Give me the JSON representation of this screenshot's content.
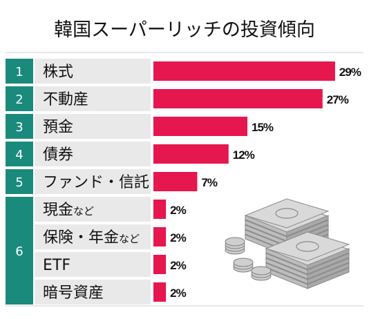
{
  "colors": {
    "rank_teal": "#1a8a7c",
    "label_bg": "#e9e9e9",
    "bar": "#e5174e",
    "text": "#111111",
    "rank_text": "#ffffff"
  },
  "icon": "money-stack-illustration",
  "chart_data": {
    "type": "bar",
    "orientation": "horizontal",
    "title": "韓国スーパーリッチの投資傾向",
    "grid": false,
    "legend": "none",
    "xlim": [
      0,
      30
    ],
    "groups": [
      {
        "rank": "1",
        "rows": [
          0
        ]
      },
      {
        "rank": "2",
        "rows": [
          1
        ]
      },
      {
        "rank": "3",
        "rows": [
          2
        ]
      },
      {
        "rank": "4",
        "rows": [
          3
        ]
      },
      {
        "rank": "5",
        "rows": [
          4
        ]
      },
      {
        "rank": "6",
        "rows": [
          5,
          6,
          7,
          8
        ]
      }
    ],
    "rows": [
      {
        "label": "株式",
        "suffix": "",
        "value": 29,
        "value_label": "29%"
      },
      {
        "label": "不動産",
        "suffix": "",
        "value": 27,
        "value_label": "27%"
      },
      {
        "label": "預金",
        "suffix": "",
        "value": 15,
        "value_label": "15%"
      },
      {
        "label": "債券",
        "suffix": "",
        "value": 12,
        "value_label": "12%"
      },
      {
        "label": "ファンド・信託",
        "suffix": "",
        "value": 7,
        "value_label": "7%"
      },
      {
        "label": "現金",
        "suffix": "など",
        "value": 2,
        "value_label": "2%"
      },
      {
        "label": "保険・年金",
        "suffix": "など",
        "value": 2,
        "value_label": "2%"
      },
      {
        "label": "ETF",
        "suffix": "",
        "value": 2,
        "value_label": "2%"
      },
      {
        "label": "暗号資産",
        "suffix": "",
        "value": 2,
        "value_label": "2%"
      }
    ]
  }
}
